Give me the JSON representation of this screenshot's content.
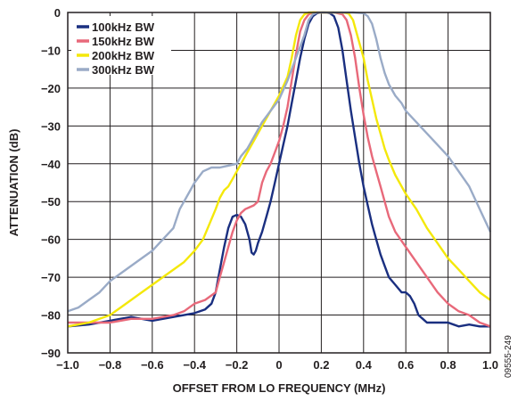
{
  "chart_data": {
    "type": "line",
    "xlabel": "OFFSET FROM LO FREQUENCY (MHz)",
    "ylabel": "ATTENUATION (dB)",
    "xlim": [
      -1.0,
      1.0
    ],
    "ylim": [
      -90,
      0
    ],
    "x_ticks": [
      "−1.0",
      "−0.8",
      "−0.6",
      "−0.4",
      "−0.2",
      "0",
      "0.2",
      "0.4",
      "0.6",
      "0.8",
      "1.0"
    ],
    "y_ticks": [
      "0",
      "−10",
      "−20",
      "−30",
      "−40",
      "−50",
      "−60",
      "−70",
      "−80",
      "−90"
    ],
    "grid": true,
    "legend_position": "top-left",
    "figure_id": "09555-249",
    "series": [
      {
        "name": "100kHz BW",
        "color": "#1a2f80",
        "points": [
          [
            -1.0,
            -83
          ],
          [
            -0.9,
            -82.5
          ],
          [
            -0.8,
            -81.5
          ],
          [
            -0.7,
            -80.5
          ],
          [
            -0.6,
            -81.5
          ],
          [
            -0.5,
            -80.5
          ],
          [
            -0.45,
            -80
          ],
          [
            -0.4,
            -79.5
          ],
          [
            -0.35,
            -78.5
          ],
          [
            -0.32,
            -77
          ],
          [
            -0.3,
            -74
          ],
          [
            -0.28,
            -68
          ],
          [
            -0.26,
            -62
          ],
          [
            -0.24,
            -57
          ],
          [
            -0.22,
            -54
          ],
          [
            -0.2,
            -53.5
          ],
          [
            -0.18,
            -54
          ],
          [
            -0.16,
            -56
          ],
          [
            -0.14,
            -60
          ],
          [
            -0.13,
            -63.5
          ],
          [
            -0.12,
            -64
          ],
          [
            -0.11,
            -63
          ],
          [
            -0.1,
            -61
          ],
          [
            -0.08,
            -58
          ],
          [
            -0.06,
            -54
          ],
          [
            -0.04,
            -50
          ],
          [
            -0.02,
            -45
          ],
          [
            0,
            -40
          ],
          [
            0.02,
            -35
          ],
          [
            0.04,
            -30
          ],
          [
            0.06,
            -24
          ],
          [
            0.08,
            -18
          ],
          [
            0.1,
            -12
          ],
          [
            0.12,
            -7
          ],
          [
            0.14,
            -3
          ],
          [
            0.16,
            -1
          ],
          [
            0.18,
            -0.2
          ],
          [
            0.2,
            0
          ],
          [
            0.22,
            0
          ],
          [
            0.24,
            -0.2
          ],
          [
            0.26,
            -1
          ],
          [
            0.28,
            -4
          ],
          [
            0.3,
            -10
          ],
          [
            0.32,
            -18
          ],
          [
            0.34,
            -26
          ],
          [
            0.36,
            -33
          ],
          [
            0.38,
            -40
          ],
          [
            0.4,
            -46
          ],
          [
            0.42,
            -51
          ],
          [
            0.44,
            -56
          ],
          [
            0.46,
            -60
          ],
          [
            0.48,
            -64
          ],
          [
            0.5,
            -67
          ],
          [
            0.52,
            -70
          ],
          [
            0.55,
            -72
          ],
          [
            0.58,
            -74
          ],
          [
            0.6,
            -74
          ],
          [
            0.62,
            -75
          ],
          [
            0.64,
            -77
          ],
          [
            0.66,
            -80
          ],
          [
            0.68,
            -81
          ],
          [
            0.7,
            -82
          ],
          [
            0.75,
            -82
          ],
          [
            0.8,
            -82
          ],
          [
            0.85,
            -83
          ],
          [
            0.9,
            -82.5
          ],
          [
            0.95,
            -83
          ],
          [
            1.0,
            -83
          ]
        ]
      },
      {
        "name": "150kHz BW",
        "color": "#e8697a",
        "points": [
          [
            -1.0,
            -82
          ],
          [
            -0.9,
            -82
          ],
          [
            -0.8,
            -82
          ],
          [
            -0.7,
            -81
          ],
          [
            -0.6,
            -81
          ],
          [
            -0.55,
            -80.5
          ],
          [
            -0.5,
            -80
          ],
          [
            -0.45,
            -79
          ],
          [
            -0.4,
            -77
          ],
          [
            -0.35,
            -76
          ],
          [
            -0.3,
            -74
          ],
          [
            -0.28,
            -70
          ],
          [
            -0.26,
            -66
          ],
          [
            -0.24,
            -62
          ],
          [
            -0.22,
            -58
          ],
          [
            -0.2,
            -55
          ],
          [
            -0.18,
            -53
          ],
          [
            -0.16,
            -52
          ],
          [
            -0.14,
            -51.5
          ],
          [
            -0.12,
            -51
          ],
          [
            -0.1,
            -50
          ],
          [
            -0.08,
            -45
          ],
          [
            -0.06,
            -42
          ],
          [
            -0.04,
            -40
          ],
          [
            -0.02,
            -37
          ],
          [
            0,
            -34
          ],
          [
            0.02,
            -30
          ],
          [
            0.04,
            -25
          ],
          [
            0.06,
            -18
          ],
          [
            0.08,
            -11
          ],
          [
            0.1,
            -5
          ],
          [
            0.12,
            -2
          ],
          [
            0.14,
            -0.5
          ],
          [
            0.16,
            0
          ],
          [
            0.2,
            0
          ],
          [
            0.26,
            0
          ],
          [
            0.3,
            -0.5
          ],
          [
            0.32,
            -2
          ],
          [
            0.34,
            -6
          ],
          [
            0.36,
            -12
          ],
          [
            0.38,
            -20
          ],
          [
            0.4,
            -27
          ],
          [
            0.42,
            -33
          ],
          [
            0.44,
            -38
          ],
          [
            0.46,
            -42
          ],
          [
            0.48,
            -46
          ],
          [
            0.5,
            -50
          ],
          [
            0.52,
            -54
          ],
          [
            0.55,
            -58
          ],
          [
            0.6,
            -62
          ],
          [
            0.65,
            -66
          ],
          [
            0.7,
            -70
          ],
          [
            0.75,
            -74
          ],
          [
            0.8,
            -77
          ],
          [
            0.85,
            -79
          ],
          [
            0.9,
            -80
          ],
          [
            0.95,
            -82
          ],
          [
            1.0,
            -83
          ]
        ]
      },
      {
        "name": "200kHz BW",
        "color": "#f4e80a",
        "points": [
          [
            -1.0,
            -83
          ],
          [
            -0.9,
            -82
          ],
          [
            -0.85,
            -81
          ],
          [
            -0.8,
            -80
          ],
          [
            -0.75,
            -78
          ],
          [
            -0.7,
            -76
          ],
          [
            -0.65,
            -74
          ],
          [
            -0.6,
            -72
          ],
          [
            -0.55,
            -70
          ],
          [
            -0.5,
            -68
          ],
          [
            -0.45,
            -66
          ],
          [
            -0.4,
            -63
          ],
          [
            -0.36,
            -60
          ],
          [
            -0.33,
            -56
          ],
          [
            -0.3,
            -52
          ],
          [
            -0.28,
            -49
          ],
          [
            -0.26,
            -47
          ],
          [
            -0.24,
            -46
          ],
          [
            -0.22,
            -44
          ],
          [
            -0.2,
            -42
          ],
          [
            -0.18,
            -40
          ],
          [
            -0.15,
            -37
          ],
          [
            -0.12,
            -34
          ],
          [
            -0.08,
            -30
          ],
          [
            -0.04,
            -26
          ],
          [
            0,
            -22
          ],
          [
            0.04,
            -17
          ],
          [
            0.06,
            -12
          ],
          [
            0.08,
            -6
          ],
          [
            0.1,
            -2
          ],
          [
            0.12,
            -0.5
          ],
          [
            0.14,
            0
          ],
          [
            0.2,
            0
          ],
          [
            0.3,
            0
          ],
          [
            0.33,
            -0.3
          ],
          [
            0.35,
            -2
          ],
          [
            0.37,
            -6
          ],
          [
            0.4,
            -12
          ],
          [
            0.42,
            -18
          ],
          [
            0.44,
            -23
          ],
          [
            0.46,
            -28
          ],
          [
            0.48,
            -32
          ],
          [
            0.5,
            -36
          ],
          [
            0.52,
            -39
          ],
          [
            0.55,
            -43
          ],
          [
            0.6,
            -48
          ],
          [
            0.65,
            -52
          ],
          [
            0.7,
            -57
          ],
          [
            0.75,
            -61
          ],
          [
            0.8,
            -65
          ],
          [
            0.85,
            -68
          ],
          [
            0.9,
            -71
          ],
          [
            0.95,
            -74
          ],
          [
            1.0,
            -76
          ]
        ]
      },
      {
        "name": "300kHz BW",
        "color": "#9aabc7",
        "points": [
          [
            -1.0,
            -79
          ],
          [
            -0.95,
            -78
          ],
          [
            -0.9,
            -76
          ],
          [
            -0.85,
            -74
          ],
          [
            -0.8,
            -71
          ],
          [
            -0.75,
            -69
          ],
          [
            -0.7,
            -67
          ],
          [
            -0.65,
            -65
          ],
          [
            -0.6,
            -63
          ],
          [
            -0.55,
            -60
          ],
          [
            -0.5,
            -57
          ],
          [
            -0.47,
            -52
          ],
          [
            -0.45,
            -50
          ],
          [
            -0.42,
            -47
          ],
          [
            -0.4,
            -45
          ],
          [
            -0.36,
            -42
          ],
          [
            -0.32,
            -41
          ],
          [
            -0.28,
            -41
          ],
          [
            -0.24,
            -40.5
          ],
          [
            -0.2,
            -40
          ],
          [
            -0.18,
            -38
          ],
          [
            -0.15,
            -36
          ],
          [
            -0.12,
            -33
          ],
          [
            -0.08,
            -29
          ],
          [
            -0.04,
            -26
          ],
          [
            0,
            -23
          ],
          [
            0.04,
            -18
          ],
          [
            0.08,
            -12
          ],
          [
            0.12,
            -6
          ],
          [
            0.14,
            -2
          ],
          [
            0.16,
            -0.5
          ],
          [
            0.18,
            0
          ],
          [
            0.25,
            0
          ],
          [
            0.3,
            0
          ],
          [
            0.35,
            0
          ],
          [
            0.4,
            -0.2
          ],
          [
            0.42,
            -1
          ],
          [
            0.44,
            -3
          ],
          [
            0.46,
            -7
          ],
          [
            0.48,
            -12
          ],
          [
            0.5,
            -16
          ],
          [
            0.52,
            -19
          ],
          [
            0.55,
            -22
          ],
          [
            0.58,
            -24
          ],
          [
            0.6,
            -26
          ],
          [
            0.65,
            -29
          ],
          [
            0.7,
            -32
          ],
          [
            0.75,
            -35
          ],
          [
            0.8,
            -38
          ],
          [
            0.85,
            -42
          ],
          [
            0.9,
            -46
          ],
          [
            0.95,
            -52
          ],
          [
            1.0,
            -58
          ]
        ]
      }
    ]
  }
}
